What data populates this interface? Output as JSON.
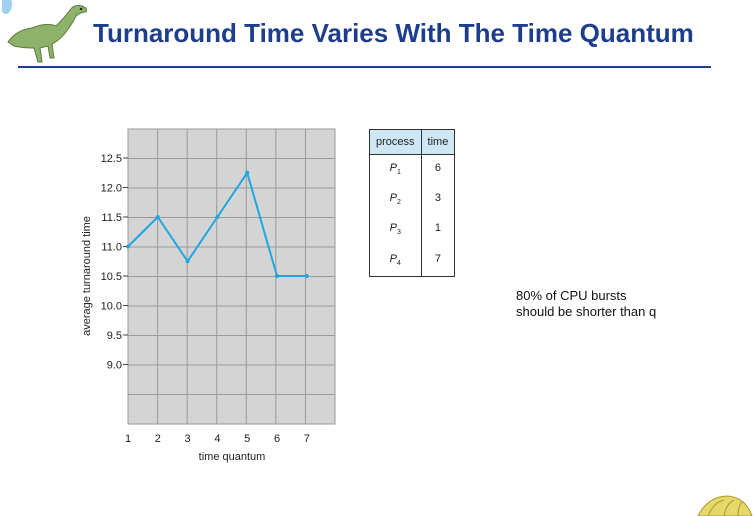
{
  "slide": {
    "title": "Turnaround Time Varies With The Time Quantum",
    "note_lines": [
      "80% of CPU bursts",
      "should be shorter than q"
    ]
  },
  "table": {
    "headers": [
      "process",
      "time"
    ],
    "rows": [
      {
        "process": "P",
        "sub": "1",
        "time": "6"
      },
      {
        "process": "P",
        "sub": "2",
        "time": "3"
      },
      {
        "process": "P",
        "sub": "3",
        "time": "1"
      },
      {
        "process": "P",
        "sub": "4",
        "time": "7"
      }
    ]
  },
  "colors": {
    "title": "#1d3e8d",
    "line": "#1ea7e0",
    "plot_bg": "#d4d4d4",
    "grid": "#9a9a9a",
    "table_header_bg": "#cde8f4"
  },
  "chart_data": {
    "type": "line",
    "title": "",
    "xlabel": "time quantum",
    "ylabel": "average turnaround time",
    "x": [
      1,
      2,
      3,
      4,
      5,
      6,
      7
    ],
    "series": [
      {
        "values": [
          11.0,
          11.5,
          10.75,
          11.5,
          12.25,
          10.5,
          10.5
        ]
      }
    ],
    "xticks": [
      "1",
      "2",
      "3",
      "4",
      "5",
      "6",
      "7"
    ],
    "yticks": [
      "12.5",
      "12.0",
      "11.5",
      "11.0",
      "10.5",
      "10.0",
      "9.5",
      "9.0"
    ],
    "xlim": [
      1,
      7
    ],
    "ylim": [
      8.5,
      12.5
    ],
    "grid": true
  }
}
